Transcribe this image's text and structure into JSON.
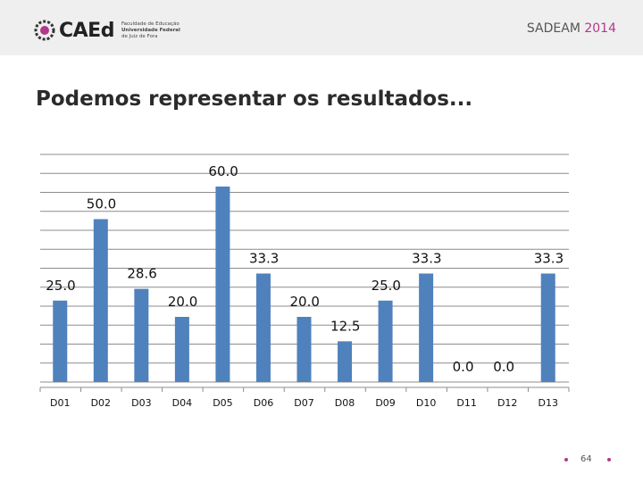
{
  "header": {
    "logo_text": "CAEd",
    "logo_lines": [
      "Faculdade de Educação",
      "Universidade Federal",
      "de Juiz de Fora"
    ],
    "badge_name": "SADEAM",
    "badge_year": "2014",
    "accent_color": "#b0398c"
  },
  "slide": {
    "title": "Podemos representar os resultados...",
    "page_number": "64"
  },
  "chart_data": {
    "type": "bar",
    "categories": [
      "D01",
      "D02",
      "D03",
      "D04",
      "D05",
      "D06",
      "D07",
      "D08",
      "D09",
      "D10",
      "D11",
      "D12",
      "D13"
    ],
    "values": [
      25.0,
      50.0,
      28.6,
      20.0,
      60.0,
      33.3,
      20.0,
      12.5,
      25.0,
      33.3,
      0.0,
      0.0,
      33.3
    ],
    "value_labels": [
      "25.0",
      "50.0",
      "28.6",
      "20.0",
      "60.0",
      "33.3",
      "20.0",
      "12.5",
      "25.0",
      "33.3",
      "0.0",
      "0.0",
      "33.3"
    ],
    "title": "",
    "xlabel": "",
    "ylabel": "",
    "ylim": [
      0,
      70
    ],
    "grid": true,
    "legend": "none",
    "bar_color": "#4f81bd"
  }
}
